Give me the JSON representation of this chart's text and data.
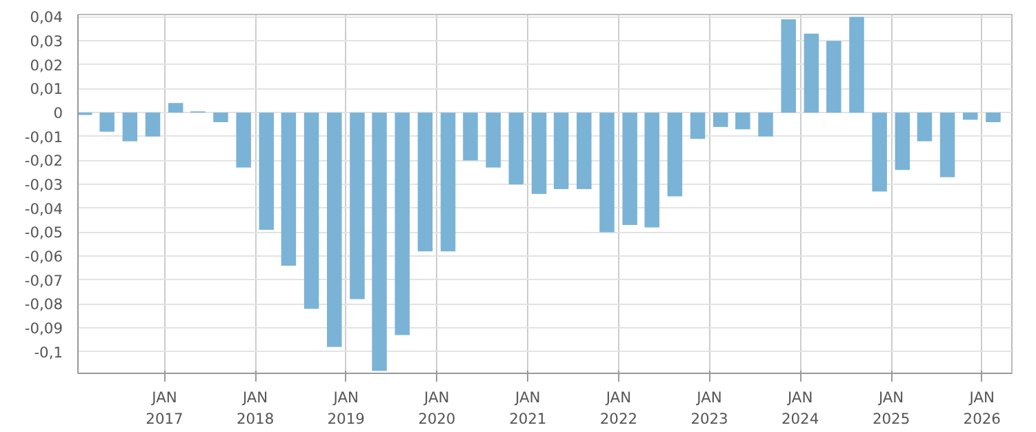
{
  "chart_data": {
    "type": "bar",
    "color": "#7ab3d6",
    "grid": true,
    "x": [
      "2016-02-15",
      "2016-05-15",
      "2016-08-15",
      "2016-11-15",
      "2017-02-15",
      "2017-05-15",
      "2017-08-15",
      "2017-11-15",
      "2018-02-15",
      "2018-05-15",
      "2018-08-15",
      "2018-11-15",
      "2019-02-15",
      "2019-05-15",
      "2019-08-15",
      "2019-11-15",
      "2020-02-15",
      "2020-05-15",
      "2020-08-15",
      "2020-11-15",
      "2021-02-15",
      "2021-05-15",
      "2021-08-15",
      "2021-11-15",
      "2022-02-15",
      "2022-05-15",
      "2022-08-15",
      "2022-11-15",
      "2023-02-15",
      "2023-05-15",
      "2023-08-15",
      "2023-11-15",
      "2024-02-15",
      "2024-05-15",
      "2024-08-15",
      "2024-11-15",
      "2025-02-15",
      "2025-05-15",
      "2025-08-15",
      "2025-11-15",
      "2026-02-15"
    ],
    "values": [
      -0.001,
      -0.008,
      -0.012,
      -0.01,
      0.004,
      0.0005,
      -0.004,
      -0.023,
      -0.049,
      -0.064,
      -0.082,
      -0.098,
      -0.078,
      -0.108,
      -0.093,
      -0.058,
      -0.058,
      -0.02,
      -0.023,
      -0.03,
      -0.034,
      -0.032,
      -0.032,
      -0.05,
      -0.047,
      -0.048,
      -0.035,
      -0.011,
      -0.006,
      -0.007,
      -0.01,
      0.039,
      0.033,
      0.03,
      0.04,
      -0.033,
      -0.024,
      -0.012,
      -0.027,
      -0.003,
      -0.004
    ],
    "xlim": [
      "2016-01-19",
      "2026-05-01"
    ],
    "xticks": [
      {
        "value": "2017-01-01",
        "label": "JAN\n2017"
      },
      {
        "value": "2018-01-01",
        "label": "JAN\n2018"
      },
      {
        "value": "2019-01-01",
        "label": "JAN\n2019"
      },
      {
        "value": "2020-01-01",
        "label": "JAN\n2020"
      },
      {
        "value": "2021-01-01",
        "label": "JAN\n2021"
      },
      {
        "value": "2022-01-01",
        "label": "JAN\n2022"
      },
      {
        "value": "2023-01-01",
        "label": "JAN\n2023"
      },
      {
        "value": "2024-01-01",
        "label": "JAN\n2024"
      },
      {
        "value": "2025-01-01",
        "label": "JAN\n2025"
      },
      {
        "value": "2026-01-01",
        "label": "JAN\n2026"
      }
    ],
    "ylim": [
      -0.109,
      0.041
    ],
    "yticks": [
      {
        "value": 0.04,
        "label": "0,04"
      },
      {
        "value": 0.03,
        "label": "0,03"
      },
      {
        "value": 0.02,
        "label": "0,02"
      },
      {
        "value": 0.01,
        "label": "0,01"
      },
      0,
      {
        "value": -0.01,
        "label": "-0,01"
      },
      {
        "value": -0.02,
        "label": "-0,02"
      },
      {
        "value": -0.03,
        "label": "-0,03"
      },
      {
        "value": -0.04,
        "label": "-0,04"
      },
      {
        "value": -0.05,
        "label": "-0,05"
      },
      {
        "value": -0.06,
        "label": "-0,06"
      },
      {
        "value": -0.07,
        "label": "-0,07"
      },
      {
        "value": -0.08,
        "label": "-0,08"
      },
      {
        "value": -0.09,
        "label": "-0,09"
      },
      {
        "value": -0.1,
        "label": "-0,1"
      }
    ]
  }
}
